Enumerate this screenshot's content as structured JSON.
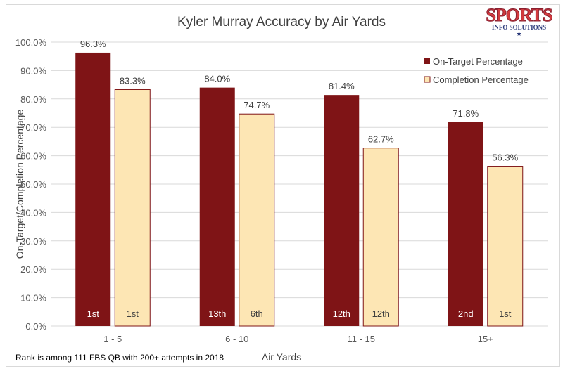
{
  "logo": {
    "text": "SPORTS INFO SOLUTIONS"
  },
  "chart_data": {
    "type": "bar",
    "title": "Kyler Murray Accuracy by Air Yards",
    "xlabel": "Air Yards",
    "ylabel": "On-Target/Completion Percentage",
    "ylim": [
      0,
      100
    ],
    "yticks": [
      "0.0%",
      "10.0%",
      "20.0%",
      "30.0%",
      "40.0%",
      "50.0%",
      "60.0%",
      "70.0%",
      "80.0%",
      "90.0%",
      "100.0%"
    ],
    "grid": true,
    "legend": "top-right",
    "categories": [
      "1 - 5",
      "6 - 10",
      "11 - 15",
      "15+"
    ],
    "series": [
      {
        "name": "On-Target Percentage",
        "color": "#7f1416",
        "values": [
          96.3,
          84.0,
          81.4,
          71.8
        ],
        "labels": [
          "96.3%",
          "84.0%",
          "81.4%",
          "71.8%"
        ],
        "ranks": [
          "1st",
          "13th",
          "12th",
          "2nd"
        ]
      },
      {
        "name": "Completion Percentage",
        "color": "#fde6b4",
        "values": [
          83.3,
          74.7,
          62.7,
          56.3
        ],
        "labels": [
          "83.3%",
          "74.7%",
          "62.7%",
          "56.3%"
        ],
        "ranks": [
          "1st",
          "6th",
          "12th",
          "1st"
        ]
      }
    ],
    "footnote": "Rank is among 111 FBS QB with 200+ attempts in 2018"
  }
}
